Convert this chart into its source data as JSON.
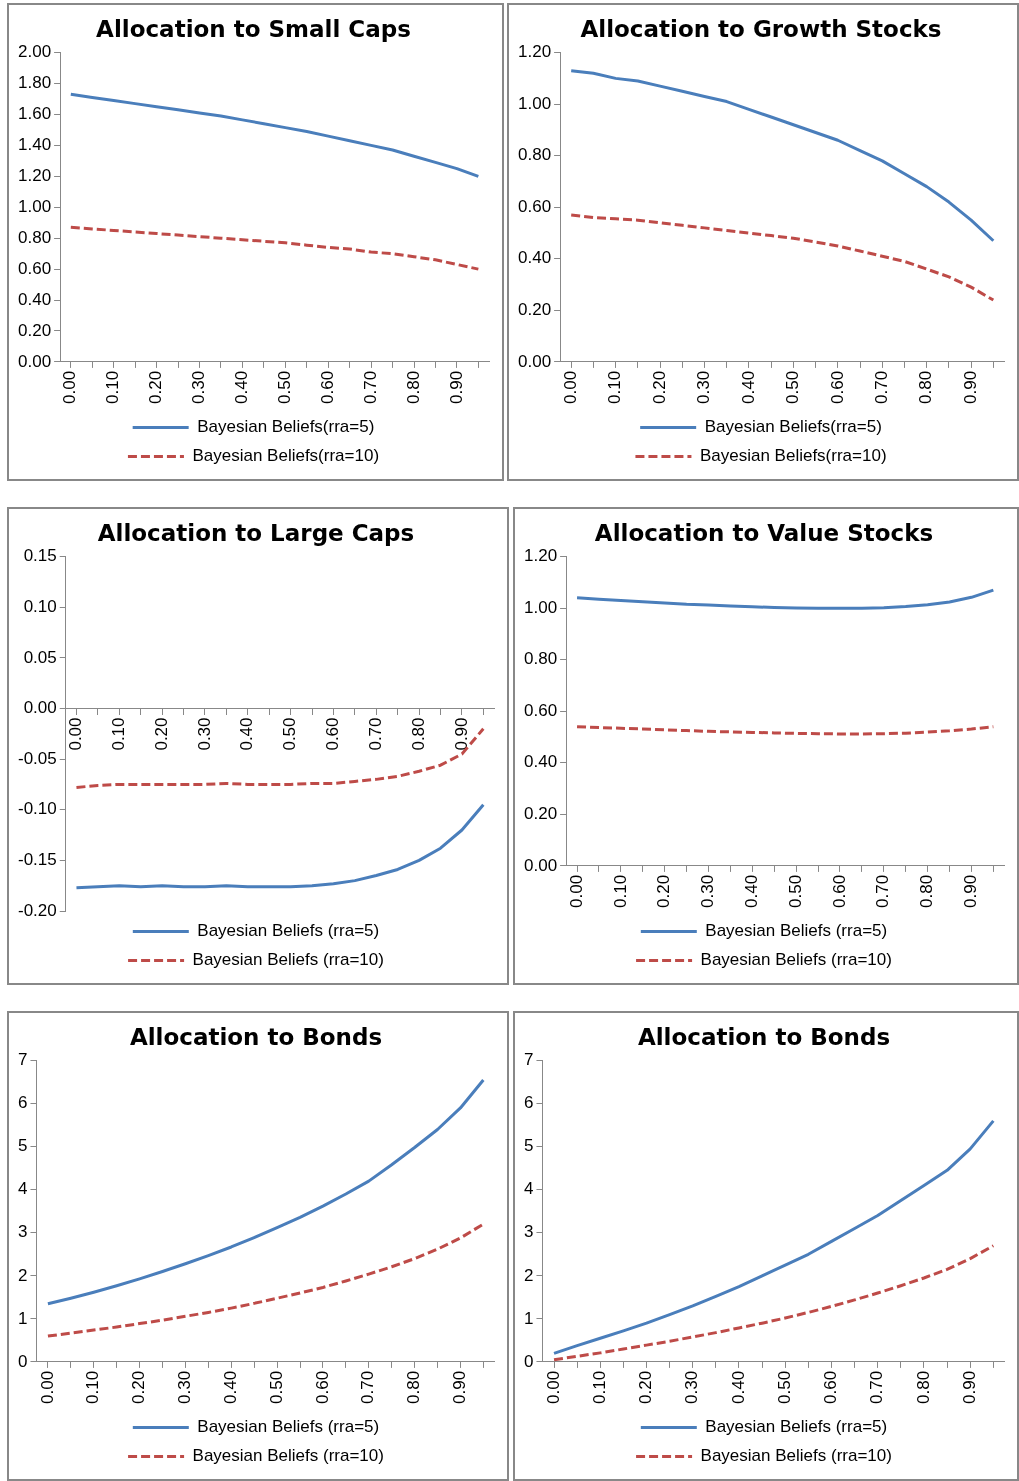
{
  "chart_data": [
    {
      "type": "line",
      "title": "Allocation to Small Caps",
      "legend": "bottom",
      "marker": "none",
      "grid": false,
      "categories": [
        "0.00",
        null,
        "0.10",
        null,
        "0.20",
        null,
        "0.30",
        null,
        "0.40",
        null,
        "0.50",
        null,
        "0.60",
        null,
        "0.70",
        null,
        "0.80",
        null,
        "0.90",
        null
      ],
      "ylim": [
        0,
        2
      ],
      "yticks": [
        {
          "value": 0,
          "label": "0.00"
        },
        {
          "value": 0.2,
          "label": "0.20"
        },
        {
          "value": 0.4,
          "label": "0.40"
        },
        {
          "value": 0.6,
          "label": "0.60"
        },
        {
          "value": 0.8,
          "label": "0.80"
        },
        {
          "value": 1,
          "label": "1.00"
        },
        {
          "value": 1.2,
          "label": "1.20"
        },
        {
          "value": 1.4,
          "label": "1.40"
        },
        {
          "value": 1.6,
          "label": "1.60"
        },
        {
          "value": 1.8,
          "label": "1.80"
        },
        {
          "value": 2,
          "label": "2.00"
        }
      ],
      "series": [
        {
          "name": "Bayesian Beliefs(rra=5)",
          "color": "#4a7ebb",
          "line_style": "solid",
          "values": [
            1.73,
            1.71,
            1.69,
            1.67,
            1.65,
            1.63,
            1.61,
            1.59,
            1.565,
            1.54,
            1.515,
            1.49,
            1.46,
            1.43,
            1.4,
            1.37,
            1.33,
            1.29,
            1.25,
            1.2
          ]
        },
        {
          "name": "Bayesian Beliefs(rra=10)",
          "color": "#be4b48",
          "line_style": "dashed",
          "values": [
            0.87,
            0.86,
            0.85,
            0.84,
            0.83,
            0.82,
            0.81,
            0.8,
            0.79,
            0.78,
            0.77,
            0.755,
            0.74,
            0.73,
            0.71,
            0.7,
            0.68,
            0.66,
            0.63,
            0.6
          ]
        }
      ]
    },
    {
      "type": "line",
      "title": "Allocation to Growth Stocks",
      "legend": "bottom",
      "marker": "none",
      "grid": false,
      "categories": [
        "0.00",
        null,
        "0.10",
        null,
        "0.20",
        null,
        "0.30",
        null,
        "0.40",
        null,
        "0.50",
        null,
        "0.60",
        null,
        "0.70",
        null,
        "0.80",
        null,
        "0.90",
        null
      ],
      "ylim": [
        0,
        1.2
      ],
      "yticks": [
        {
          "value": 0,
          "label": "0.00"
        },
        {
          "value": 0.2,
          "label": "0.20"
        },
        {
          "value": 0.4,
          "label": "0.40"
        },
        {
          "value": 0.6,
          "label": "0.60"
        },
        {
          "value": 0.8,
          "label": "0.80"
        },
        {
          "value": 1,
          "label": "1.00"
        },
        {
          "value": 1.2,
          "label": "1.20"
        }
      ],
      "series": [
        {
          "name": "Bayesian Beliefs(rra=5)",
          "color": "#4a7ebb",
          "line_style": "solid",
          "values": [
            1.13,
            1.12,
            1.1,
            1.09,
            1.07,
            1.05,
            1.03,
            1.01,
            0.98,
            0.95,
            0.92,
            0.89,
            0.86,
            0.82,
            0.78,
            0.73,
            0.68,
            0.62,
            0.55,
            0.47
          ]
        },
        {
          "name": "Bayesian Beliefs(rra=10)",
          "color": "#be4b48",
          "line_style": "dashed",
          "values": [
            0.57,
            0.56,
            0.555,
            0.55,
            0.54,
            0.53,
            0.52,
            0.51,
            0.5,
            0.49,
            0.48,
            0.465,
            0.45,
            0.43,
            0.41,
            0.39,
            0.36,
            0.33,
            0.29,
            0.24
          ]
        }
      ]
    },
    {
      "type": "line",
      "title": "Allocation to Large Caps",
      "legend": "bottom",
      "marker": "none",
      "grid": false,
      "categories": [
        "0.00",
        null,
        "0.10",
        null,
        "0.20",
        null,
        "0.30",
        null,
        "0.40",
        null,
        "0.50",
        null,
        "0.60",
        null,
        "0.70",
        null,
        "0.80",
        null,
        "0.90",
        null
      ],
      "ylim": [
        -0.2,
        0.15
      ],
      "yticks": [
        {
          "value": -0.2,
          "label": "-0.20"
        },
        {
          "value": -0.15,
          "label": "-0.15"
        },
        {
          "value": -0.1,
          "label": "-0.10"
        },
        {
          "value": -0.05,
          "label": "-0.05"
        },
        {
          "value": 0,
          "label": "0.00"
        },
        {
          "value": 0.05,
          "label": "0.05"
        },
        {
          "value": 0.1,
          "label": "0.10"
        },
        {
          "value": 0.15,
          "label": "0.15"
        }
      ],
      "series": [
        {
          "name": "Bayesian Beliefs (rra=5)",
          "color": "#4a7ebb",
          "line_style": "solid",
          "values": [
            -0.177,
            -0.176,
            -0.175,
            -0.176,
            -0.175,
            -0.176,
            -0.176,
            -0.175,
            -0.176,
            -0.176,
            -0.176,
            -0.175,
            -0.173,
            -0.17,
            -0.165,
            -0.159,
            -0.15,
            -0.138,
            -0.12,
            -0.095
          ]
        },
        {
          "name": "Bayesian Beliefs (rra=10)",
          "color": "#be4b48",
          "line_style": "dashed",
          "values": [
            -0.078,
            -0.076,
            -0.075,
            -0.075,
            -0.075,
            -0.075,
            -0.075,
            -0.074,
            -0.075,
            -0.075,
            -0.075,
            -0.074,
            -0.074,
            -0.072,
            -0.07,
            -0.067,
            -0.062,
            -0.056,
            -0.045,
            -0.02
          ]
        }
      ]
    },
    {
      "type": "line",
      "title": "Allocation to Value Stocks",
      "legend": "bottom",
      "marker": "none",
      "grid": false,
      "categories": [
        "0.00",
        null,
        "0.10",
        null,
        "0.20",
        null,
        "0.30",
        null,
        "0.40",
        null,
        "0.50",
        null,
        "0.60",
        null,
        "0.70",
        null,
        "0.80",
        null,
        "0.90",
        null
      ],
      "ylim": [
        0,
        1.2
      ],
      "yticks": [
        {
          "value": 0,
          "label": "0.00"
        },
        {
          "value": 0.2,
          "label": "0.20"
        },
        {
          "value": 0.4,
          "label": "0.40"
        },
        {
          "value": 0.6,
          "label": "0.60"
        },
        {
          "value": 0.8,
          "label": "0.80"
        },
        {
          "value": 1,
          "label": "1.00"
        },
        {
          "value": 1.2,
          "label": "1.20"
        }
      ],
      "series": [
        {
          "name": "Bayesian Beliefs (rra=5)",
          "color": "#4a7ebb",
          "line_style": "solid",
          "values": [
            1.04,
            1.035,
            1.03,
            1.025,
            1.02,
            1.015,
            1.012,
            1.008,
            1.005,
            1.003,
            1.001,
            1.0,
            1.0,
            1.0,
            1.002,
            1.006,
            1.013,
            1.024,
            1.042,
            1.07
          ]
        },
        {
          "name": "Bayesian Beliefs (rra=10)",
          "color": "#be4b48",
          "line_style": "dashed",
          "values": [
            0.54,
            0.537,
            0.534,
            0.531,
            0.528,
            0.525,
            0.522,
            0.52,
            0.518,
            0.516,
            0.514,
            0.513,
            0.512,
            0.512,
            0.513,
            0.515,
            0.519,
            0.524,
            0.531,
            0.54
          ]
        }
      ]
    },
    {
      "type": "line",
      "title": "Allocation to Bonds",
      "legend": "bottom",
      "marker": "none",
      "grid": false,
      "categories": [
        "0.00",
        null,
        "0.10",
        null,
        "0.20",
        null,
        "0.30",
        null,
        "0.40",
        null,
        "0.50",
        null,
        "0.60",
        null,
        "0.70",
        null,
        "0.80",
        null,
        "0.90",
        null
      ],
      "ylim": [
        0,
        7
      ],
      "yticks": [
        0,
        1,
        2,
        3,
        4,
        5,
        6,
        7
      ],
      "series": [
        {
          "name": "Bayesian Beliefs (rra=5)",
          "color": "#4a7ebb",
          "line_style": "solid",
          "values": [
            1.35,
            1.48,
            1.62,
            1.77,
            1.93,
            2.1,
            2.28,
            2.47,
            2.67,
            2.89,
            3.12,
            3.36,
            3.62,
            3.9,
            4.2,
            4.58,
            4.98,
            5.4,
            5.9,
            6.55
          ]
        },
        {
          "name": "Bayesian Beliefs (rra=10)",
          "color": "#be4b48",
          "line_style": "dashed",
          "values": [
            0.6,
            0.67,
            0.74,
            0.81,
            0.89,
            0.97,
            1.06,
            1.15,
            1.25,
            1.36,
            1.48,
            1.6,
            1.73,
            1.88,
            2.04,
            2.21,
            2.4,
            2.62,
            2.88,
            3.2
          ]
        }
      ]
    },
    {
      "type": "line",
      "title": "Allocation to Bonds",
      "legend": "bottom",
      "marker": "none",
      "grid": false,
      "categories": [
        "0.00",
        null,
        "0.10",
        null,
        "0.20",
        null,
        "0.30",
        null,
        "0.40",
        null,
        "0.50",
        null,
        "0.60",
        null,
        "0.70",
        null,
        "0.80",
        null,
        "0.90",
        null
      ],
      "ylim": [
        0,
        7
      ],
      "yticks": [
        0,
        1,
        2,
        3,
        4,
        5,
        6,
        7
      ],
      "series": [
        {
          "name": "Bayesian Beliefs (rra=5)",
          "color": "#4a7ebb",
          "line_style": "solid",
          "values": [
            0.2,
            0.38,
            0.55,
            0.72,
            0.9,
            1.1,
            1.3,
            1.52,
            1.75,
            2.0,
            2.25,
            2.5,
            2.8,
            3.1,
            3.4,
            3.75,
            4.1,
            4.45,
            4.95,
            5.6
          ]
        },
        {
          "name": "Bayesian Beliefs (rra=10)",
          "color": "#be4b48",
          "line_style": "dashed",
          "values": [
            0.05,
            0.13,
            0.21,
            0.3,
            0.39,
            0.48,
            0.58,
            0.68,
            0.79,
            0.9,
            1.02,
            1.15,
            1.29,
            1.44,
            1.6,
            1.77,
            1.95,
            2.15,
            2.4,
            2.7
          ]
        }
      ]
    }
  ]
}
